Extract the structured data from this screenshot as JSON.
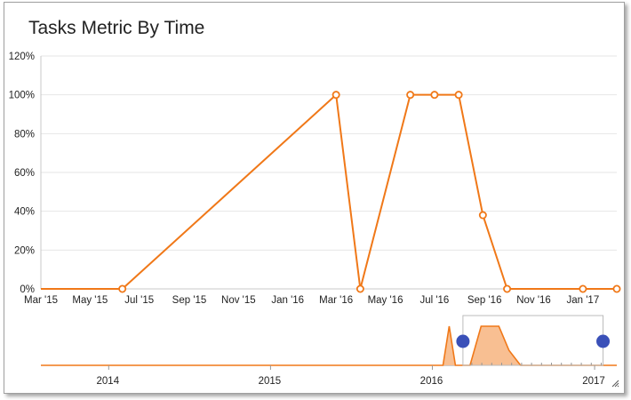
{
  "chart_data": {
    "type": "line",
    "title": "Tasks Metric By Time",
    "xlabel": "",
    "ylabel": "",
    "y_ticks": [
      "0%",
      "20%",
      "40%",
      "60%",
      "80%",
      "100%",
      "120%"
    ],
    "ylim": [
      0,
      120
    ],
    "x_ticks": [
      "Mar '15",
      "May '15",
      "Jul '15",
      "Sep '15",
      "Nov '15",
      "Jan '16",
      "Mar '16",
      "May '16",
      "Jul '16",
      "Sep '16",
      "Nov '16",
      "Jan '17"
    ],
    "xlim": [
      "2015-03-01",
      "2017-02-12"
    ],
    "series": [
      {
        "color": "#f07818",
        "points": [
          {
            "x": "2015-03-01",
            "y": 0,
            "marker": false
          },
          {
            "x": "2015-06-10",
            "y": 0,
            "marker": true
          },
          {
            "x": "2016-03-01",
            "y": 100,
            "marker": true
          },
          {
            "x": "2016-03-31",
            "y": 0,
            "marker": true
          },
          {
            "x": "2016-06-01",
            "y": 100,
            "marker": true
          },
          {
            "x": "2016-07-01",
            "y": 100,
            "marker": true
          },
          {
            "x": "2016-07-31",
            "y": 100,
            "marker": true
          },
          {
            "x": "2016-08-30",
            "y": 38,
            "marker": true
          },
          {
            "x": "2016-09-29",
            "y": 0,
            "marker": true
          },
          {
            "x": "2017-01-01",
            "y": 0,
            "marker": true
          },
          {
            "x": "2017-02-12",
            "y": 0,
            "marker": true
          }
        ]
      }
    ],
    "grid": true,
    "legend": "none",
    "navigator": {
      "years": [
        "2014",
        "2015",
        "2016",
        "2017"
      ],
      "range": [
        "2016-03-10",
        "2017-01-20"
      ],
      "series": [
        {
          "x": "2013-08-01",
          "y": 0
        },
        {
          "x": "2016-01-25",
          "y": 0
        },
        {
          "x": "2016-02-08",
          "y": 100
        },
        {
          "x": "2016-02-22",
          "y": 0
        },
        {
          "x": "2016-03-26",
          "y": 0
        },
        {
          "x": "2016-04-20",
          "y": 100
        },
        {
          "x": "2016-05-30",
          "y": 100
        },
        {
          "x": "2016-06-22",
          "y": 38
        },
        {
          "x": "2016-07-18",
          "y": 0
        },
        {
          "x": "2017-02-20",
          "y": 0
        }
      ]
    }
  }
}
